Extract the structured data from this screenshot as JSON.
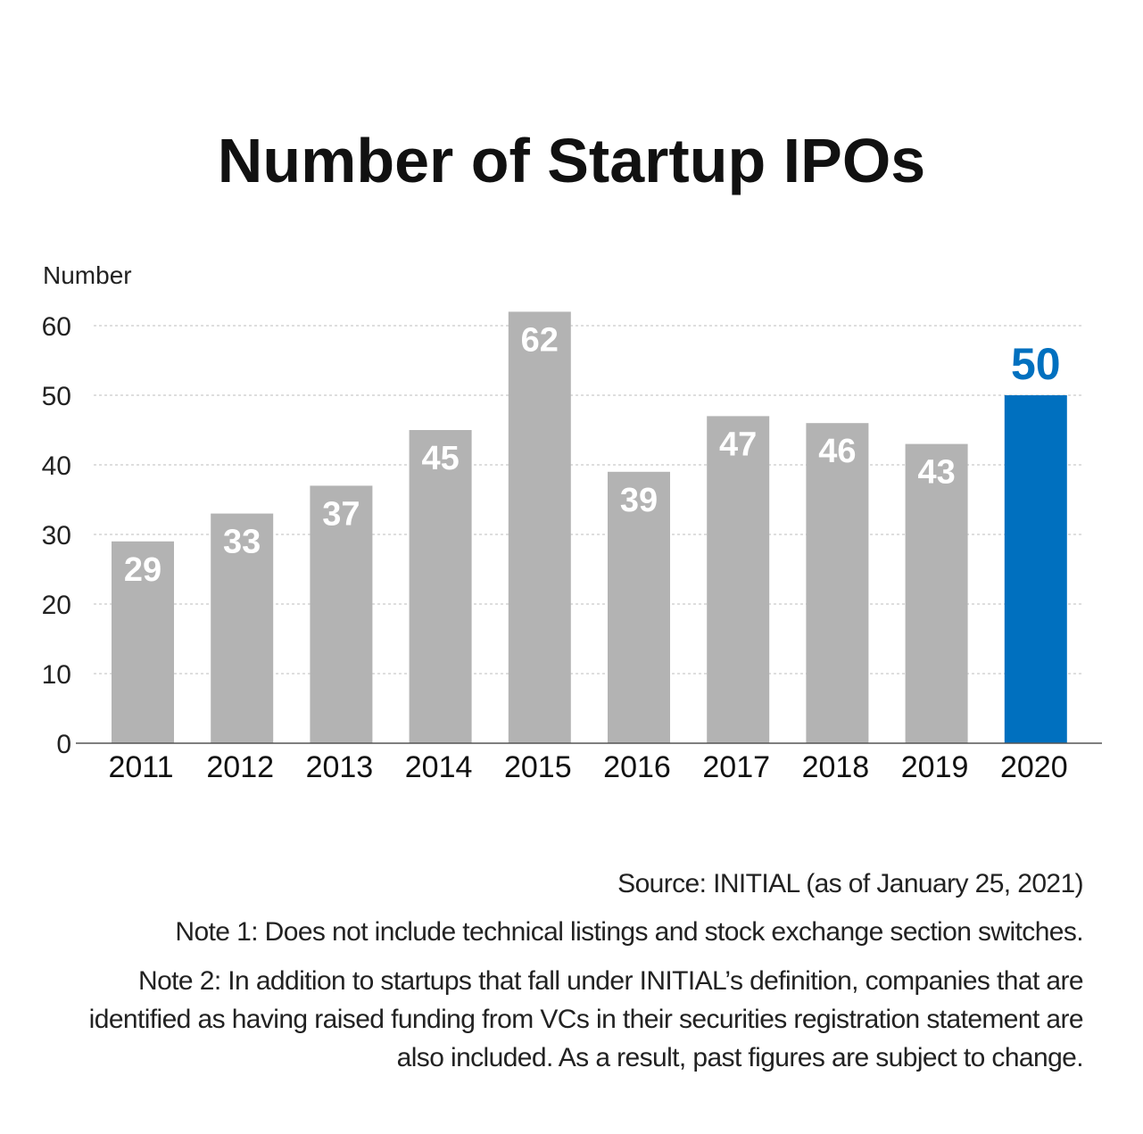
{
  "title": "Number of Startup IPOs",
  "chart_data": {
    "type": "bar",
    "title": "Number of Startup IPOs",
    "xlabel": "",
    "ylabel": "Number",
    "ylim": [
      0,
      60
    ],
    "yticks": [
      0,
      10,
      20,
      30,
      40,
      50,
      60
    ],
    "grid": true,
    "categories": [
      "2011",
      "2012",
      "2013",
      "2014",
      "2015",
      "2016",
      "2017",
      "2018",
      "2019",
      "2020"
    ],
    "values": [
      29,
      33,
      37,
      45,
      62,
      39,
      47,
      46,
      43,
      50
    ],
    "highlight_index": 9,
    "colors": {
      "default": "#b3b3b3",
      "highlight": "#0070bf",
      "default_label": "#ffffff",
      "highlight_label": "#0070bf"
    }
  },
  "footer": {
    "source": "Source: INITIAL (as of January 25, 2021)",
    "note1": "Note 1: Does not include technical listings and stock exchange section switches.",
    "note2": "Note 2: In addition to startups that fall under INITIAL’s definition, companies that are identified as having raised funding from VCs in their securities registration statement are also included. As a result, past figures are subject to change."
  }
}
